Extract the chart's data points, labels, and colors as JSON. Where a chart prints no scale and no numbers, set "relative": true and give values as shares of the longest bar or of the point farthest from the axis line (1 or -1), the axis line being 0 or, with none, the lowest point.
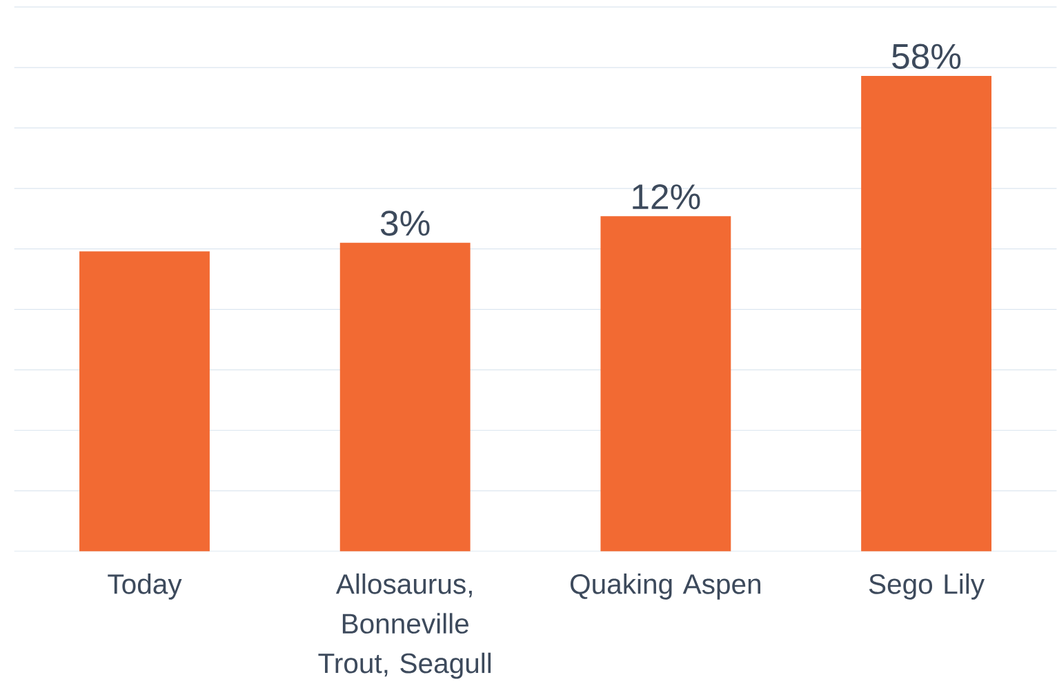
{
  "chart_data": {
    "type": "bar",
    "relative": true,
    "grid": "y",
    "color": "#f26a33",
    "categories": [
      "Today",
      "Allosaurus, Bonneville Trout, Seagull",
      "Quaking Aspen",
      "Sego Lily"
    ],
    "values": [
      0.631,
      0.649,
      0.705,
      1
    ],
    "annotations": [
      "3%",
      "12%",
      "58%"
    ]
  }
}
